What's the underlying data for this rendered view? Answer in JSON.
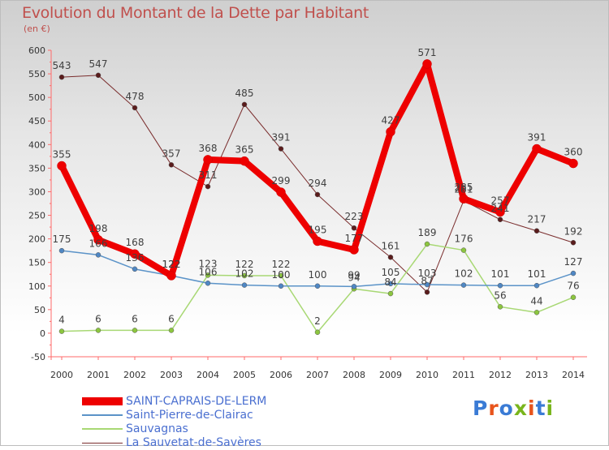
{
  "title": "Evolution du Montant de la Dette par Habitant",
  "unit_label": "(en €)",
  "logo_text": "Proxiti",
  "logo_colors": [
    "#3a7bd5",
    "#e8541c",
    "#3a7bd5",
    "#79b51c",
    "#e8541c",
    "#3a7bd5",
    "#79b51c"
  ],
  "chart_data": {
    "type": "line",
    "x": [
      "2000",
      "2001",
      "2002",
      "2003",
      "2004",
      "2005",
      "2006",
      "2007",
      "2008",
      "2009",
      "2010",
      "2011",
      "2012",
      "2013",
      "2014"
    ],
    "ylim": [
      -50,
      600
    ],
    "yticks": [
      -50,
      0,
      50,
      100,
      150,
      200,
      250,
      300,
      350,
      400,
      450,
      500,
      550,
      600
    ],
    "grid": false,
    "legend_position": "bottom",
    "series": [
      {
        "name": "SAINT-CAPRAIS-DE-LERM",
        "color": "#ee0000",
        "marker": "#ee0000",
        "width": 8,
        "values": [
          355,
          198,
          168,
          122,
          368,
          365,
          299,
          195,
          177,
          427,
          571,
          285,
          257,
          391,
          360
        ]
      },
      {
        "name": "Saint-Pierre-de-Clairac",
        "color": "#5b93c8",
        "marker": "#4f87c4",
        "width": 1.5,
        "values": [
          175,
          166,
          136,
          122,
          106,
          102,
          100,
          100,
          99,
          105,
          103,
          102,
          101,
          101,
          127
        ]
      },
      {
        "name": "Sauvagnas",
        "color": "#a8d874",
        "marker": "#8cc63f",
        "width": 1.5,
        "values": [
          4,
          6,
          6,
          6,
          123,
          122,
          122,
          2,
          94,
          84,
          189,
          176,
          56,
          44,
          76
        ]
      },
      {
        "name": "La Sauvetat-de-Savères",
        "color": "#7a2d2d",
        "marker": "#5a1c1c",
        "width": 1,
        "values": [
          543,
          547,
          478,
          357,
          311,
          485,
          391,
          294,
          223,
          161,
          87,
          281,
          241,
          217,
          192
        ]
      }
    ]
  }
}
